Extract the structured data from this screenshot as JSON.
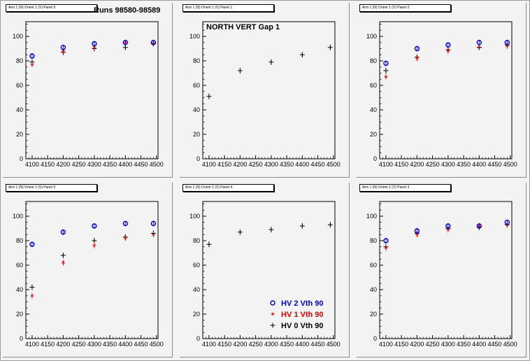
{
  "window": {
    "background": "#f3f3f3"
  },
  "colors": {
    "hv2": "#0000cc",
    "hv1": "#dd0000",
    "hv0": "#000000"
  },
  "chart_data": [
    {
      "type": "scatter",
      "pad_title": "Arm 1 (N) Orient 1 (V) Panel 0",
      "annotation": "Runs 98580-98589",
      "xticks": [
        "4100",
        "4150",
        "4200",
        "4250",
        "4300",
        "4350",
        "4400",
        "4450",
        "4500"
      ],
      "yticks": [
        "0",
        "20",
        "40",
        "60",
        "80",
        "100"
      ],
      "xlim": [
        4080,
        4505
      ],
      "ylim": [
        0,
        112
      ],
      "series": [
        {
          "key": "hv2",
          "marker": "circle",
          "x": [
            4100,
            4200,
            4300,
            4400,
            4490
          ],
          "y": [
            84,
            91,
            94,
            95,
            95
          ]
        },
        {
          "key": "hv1",
          "marker": "star",
          "x": [
            4100,
            4200,
            4300,
            4400,
            4490
          ],
          "y": [
            77,
            88,
            91,
            95,
            94
          ]
        },
        {
          "key": "hv0",
          "marker": "cross",
          "x": [
            4100,
            4200,
            4300,
            4400,
            4490
          ],
          "y": [
            79,
            87,
            90,
            91,
            94
          ]
        }
      ]
    },
    {
      "type": "scatter",
      "pad_title": "Arm 1 (N) Orient 1 (V) Panel 1",
      "annotation": "NORTH VERT Gap 1",
      "xticks": [
        "4100",
        "4150",
        "4200",
        "4250",
        "4300",
        "4350",
        "4400",
        "4450",
        "4500"
      ],
      "yticks": [
        "0",
        "20",
        "40",
        "60",
        "80",
        "100"
      ],
      "xlim": [
        4080,
        4505
      ],
      "ylim": [
        0,
        112
      ],
      "series": [
        {
          "key": "hv0",
          "marker": "cross",
          "x": [
            4100,
            4200,
            4300,
            4400,
            4490
          ],
          "y": [
            51,
            72,
            79,
            85,
            91
          ]
        }
      ]
    },
    {
      "type": "scatter",
      "pad_title": "Arm 1 (N) Orient 1 (V) Panel 2",
      "annotation": "",
      "xticks": [
        "4100",
        "4150",
        "4200",
        "4250",
        "4300",
        "4350",
        "4400",
        "4450",
        "4500"
      ],
      "yticks": [
        "0",
        "20",
        "40",
        "60",
        "80",
        "100"
      ],
      "xlim": [
        4080,
        4505
      ],
      "ylim": [
        0,
        112
      ],
      "series": [
        {
          "key": "hv2",
          "marker": "circle",
          "x": [
            4100,
            4200,
            4300,
            4400,
            4490
          ],
          "y": [
            78,
            90,
            93,
            95,
            95
          ]
        },
        {
          "key": "hv1",
          "marker": "star",
          "x": [
            4100,
            4200,
            4300,
            4400,
            4490
          ],
          "y": [
            67,
            82,
            88,
            91,
            92
          ]
        },
        {
          "key": "hv0",
          "marker": "cross",
          "x": [
            4100,
            4200,
            4300,
            4400,
            4490
          ],
          "y": [
            72,
            83,
            89,
            91,
            93
          ]
        }
      ]
    },
    {
      "type": "scatter",
      "pad_title": "Arm 1 (N) Orient 1 (V) Panel 5",
      "annotation": "",
      "xticks": [
        "4100",
        "4150",
        "4200",
        "4250",
        "4300",
        "4350",
        "4400",
        "4450",
        "4500"
      ],
      "yticks": [
        "0",
        "20",
        "40",
        "60",
        "80",
        "100"
      ],
      "xlim": [
        4080,
        4505
      ],
      "ylim": [
        0,
        112
      ],
      "series": [
        {
          "key": "hv2",
          "marker": "circle",
          "x": [
            4100,
            4200,
            4300,
            4400,
            4490
          ],
          "y": [
            77,
            87,
            92,
            94,
            94
          ]
        },
        {
          "key": "hv1",
          "marker": "star",
          "x": [
            4100,
            4200,
            4300,
            4400,
            4490
          ],
          "y": [
            35,
            62,
            76,
            82,
            85
          ]
        },
        {
          "key": "hv0",
          "marker": "cross",
          "x": [
            4100,
            4200,
            4300,
            4400,
            4490
          ],
          "y": [
            42,
            68,
            80,
            83,
            86
          ]
        }
      ]
    },
    {
      "type": "scatter",
      "pad_title": "Arm 1 (N) Orient 1 (V) Panel 4",
      "annotation": "",
      "xticks": [
        "4100",
        "4150",
        "4200",
        "4250",
        "4300",
        "4350",
        "4400",
        "4450",
        "4500"
      ],
      "yticks": [
        "0",
        "20",
        "40",
        "60",
        "80",
        "100"
      ],
      "xlim": [
        4080,
        4505
      ],
      "ylim": [
        0,
        112
      ],
      "legend": [
        {
          "key": "hv2",
          "marker": "circle",
          "label": "HV 2 Vth 90"
        },
        {
          "key": "hv1",
          "marker": "star",
          "label": "HV 1 Vth 90"
        },
        {
          "key": "hv0",
          "marker": "cross",
          "label": "HV 0 Vth 90"
        }
      ],
      "legend_position": "bottom-right",
      "series": [
        {
          "key": "hv0",
          "marker": "cross",
          "x": [
            4100,
            4200,
            4300,
            4400,
            4490
          ],
          "y": [
            77,
            87,
            89,
            92,
            93
          ]
        }
      ]
    },
    {
      "type": "scatter",
      "pad_title": "Arm 1 (N) Orient 1 (V) Panel 3",
      "annotation": "",
      "xticks": [
        "4100",
        "4150",
        "4200",
        "4250",
        "4300",
        "4350",
        "4400",
        "4450",
        "4500"
      ],
      "yticks": [
        "0",
        "20",
        "40",
        "60",
        "80",
        "100"
      ],
      "xlim": [
        4080,
        4505
      ],
      "ylim": [
        0,
        112
      ],
      "series": [
        {
          "key": "hv2",
          "marker": "circle",
          "x": [
            4100,
            4200,
            4300,
            4400,
            4490
          ],
          "y": [
            80,
            88,
            92,
            92,
            95
          ]
        },
        {
          "key": "hv1",
          "marker": "star",
          "x": [
            4100,
            4200,
            4300,
            4400,
            4490
          ],
          "y": [
            74,
            85,
            89,
            92,
            93
          ]
        },
        {
          "key": "hv0",
          "marker": "cross",
          "x": [
            4100,
            4200,
            4300,
            4400,
            4490
          ],
          "y": [
            75,
            86,
            90,
            91,
            93
          ]
        }
      ]
    }
  ]
}
